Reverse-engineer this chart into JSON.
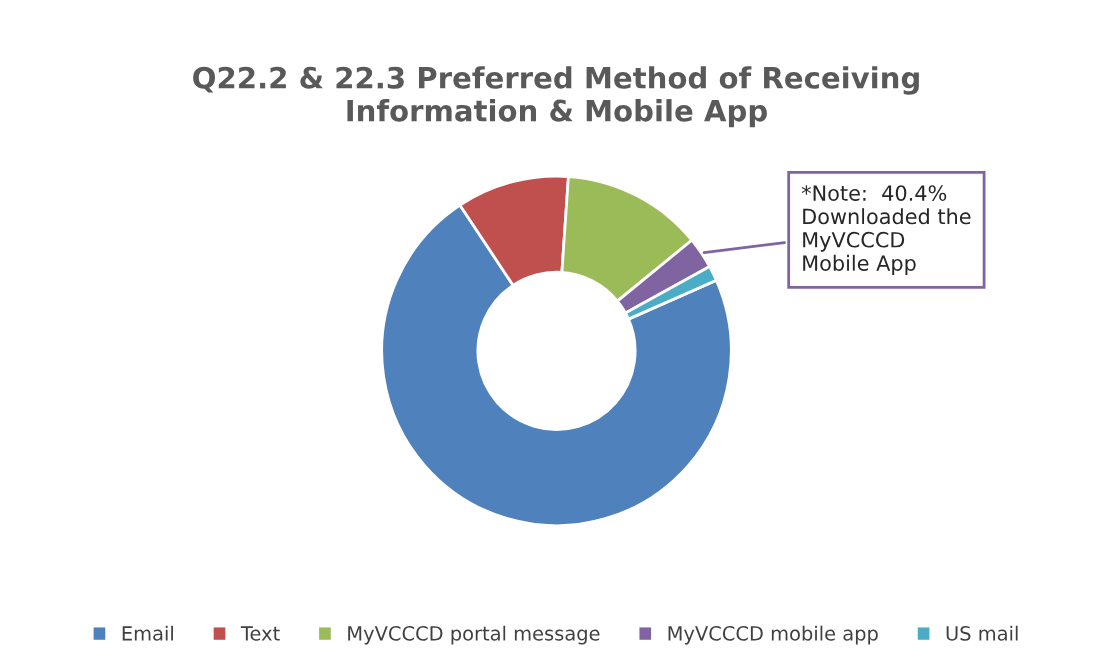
{
  "chart_data": {
    "type": "donut",
    "title": "Q22.2 & 22.3 Preferred Method of Receiving\nInformation & Mobile App",
    "categories": [
      "Email",
      "Text",
      "MyVCCCD portal message",
      "MyVCCCD mobile app",
      "US mail"
    ],
    "values": [
      72.3,
      10.4,
      13.0,
      2.9,
      1.4
    ],
    "colors": [
      "#4f81bd",
      "#c0504d",
      "#9bbb59",
      "#8064a2",
      "#4bacc6"
    ],
    "annotations": [
      "*Note:  40.4%\nDownloaded the\nMyVCCCD\nMobile App"
    ],
    "legend": "bottom"
  }
}
